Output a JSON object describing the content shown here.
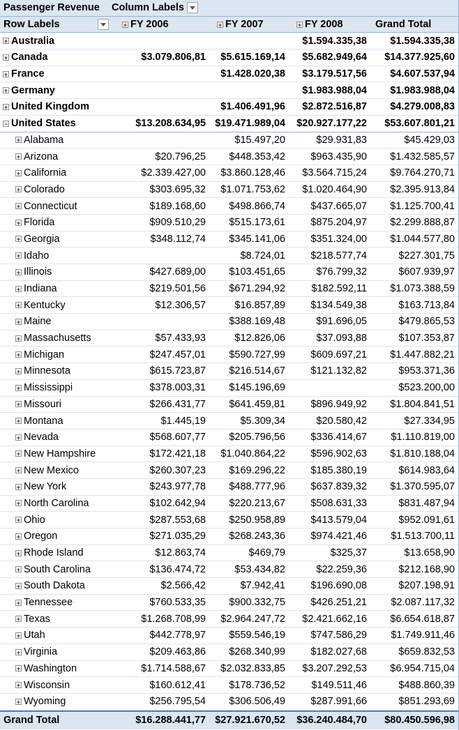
{
  "header": {
    "title": "Passenger Revenue",
    "column_labels": "Column Labels",
    "row_labels": "Row Labels",
    "columns": [
      "FY 2006",
      "FY 2007",
      "FY 2008",
      "Grand Total"
    ]
  },
  "groups": [
    {
      "label": "Australia",
      "values": [
        "",
        "",
        "$1.594.335,38",
        "$1.594.335,38"
      ],
      "expanded": false
    },
    {
      "label": "Canada",
      "values": [
        "$3.079.806,81",
        "$5.615.169,14",
        "$5.682.949,64",
        "$14.377.925,60"
      ],
      "expanded": false
    },
    {
      "label": "France",
      "values": [
        "",
        "$1.428.020,38",
        "$3.179.517,56",
        "$4.607.537,94"
      ],
      "expanded": false
    },
    {
      "label": "Germany",
      "values": [
        "",
        "",
        "$1.983.988,04",
        "$1.983.988,04"
      ],
      "expanded": false
    },
    {
      "label": "United Kingdom",
      "values": [
        "",
        "$1.406.491,96",
        "$2.872.516,87",
        "$4.279.008,83"
      ],
      "expanded": false
    },
    {
      "label": "United States",
      "values": [
        "$13.208.634,95",
        "$19.471.989,04",
        "$20.927.177,22",
        "$53.607.801,21"
      ],
      "expanded": true
    }
  ],
  "states": [
    {
      "label": "Alabama",
      "values": [
        "",
        "$15.497,20",
        "$29.931,83",
        "$45.429,03"
      ]
    },
    {
      "label": "Arizona",
      "values": [
        "$20.796,25",
        "$448.353,42",
        "$963.435,90",
        "$1.432.585,57"
      ]
    },
    {
      "label": "California",
      "values": [
        "$2.339.427,00",
        "$3.860.128,46",
        "$3.564.715,24",
        "$9.764.270,71"
      ]
    },
    {
      "label": "Colorado",
      "values": [
        "$303.695,32",
        "$1.071.753,62",
        "$1.020.464,90",
        "$2.395.913,84"
      ]
    },
    {
      "label": "Connecticut",
      "values": [
        "$189.168,60",
        "$498.866,74",
        "$437.665,07",
        "$1.125.700,41"
      ]
    },
    {
      "label": "Florida",
      "values": [
        "$909.510,29",
        "$515.173,61",
        "$875.204,97",
        "$2.299.888,87"
      ]
    },
    {
      "label": "Georgia",
      "values": [
        "$348.112,74",
        "$345.141,06",
        "$351.324,00",
        "$1.044.577,80"
      ]
    },
    {
      "label": "Idaho",
      "values": [
        "",
        "$8.724,01",
        "$218.577,74",
        "$227.301,75"
      ]
    },
    {
      "label": "Illinois",
      "values": [
        "$427.689,00",
        "$103.451,65",
        "$76.799,32",
        "$607.939,97"
      ]
    },
    {
      "label": "Indiana",
      "values": [
        "$219.501,56",
        "$671.294,92",
        "$182.592,11",
        "$1.073.388,59"
      ]
    },
    {
      "label": "Kentucky",
      "values": [
        "$12.306,57",
        "$16.857,89",
        "$134.549,38",
        "$163.713,84"
      ]
    },
    {
      "label": "Maine",
      "values": [
        "",
        "$388.169,48",
        "$91.696,05",
        "$479.865,53"
      ]
    },
    {
      "label": "Massachusetts",
      "values": [
        "$57.433,93",
        "$12.826,06",
        "$37.093,88",
        "$107.353,87"
      ]
    },
    {
      "label": "Michigan",
      "values": [
        "$247.457,01",
        "$590.727,99",
        "$609.697,21",
        "$1.447.882,21"
      ]
    },
    {
      "label": "Minnesota",
      "values": [
        "$615.723,87",
        "$216.514,67",
        "$121.132,82",
        "$953.371,36"
      ]
    },
    {
      "label": "Mississippi",
      "values": [
        "$378.003,31",
        "$145.196,69",
        "",
        "$523.200,00"
      ]
    },
    {
      "label": "Missouri",
      "values": [
        "$266.431,77",
        "$641.459,81",
        "$896.949,92",
        "$1.804.841,51"
      ]
    },
    {
      "label": "Montana",
      "values": [
        "$1.445,19",
        "$5.309,34",
        "$20.580,42",
        "$27.334,95"
      ]
    },
    {
      "label": "Nevada",
      "values": [
        "$568.607,77",
        "$205.796,56",
        "$336.414,67",
        "$1.110.819,00"
      ]
    },
    {
      "label": "New Hampshire",
      "values": [
        "$172.421,18",
        "$1.040.864,22",
        "$596.902,63",
        "$1.810.188,04"
      ]
    },
    {
      "label": "New Mexico",
      "values": [
        "$260.307,23",
        "$169.296,22",
        "$185.380,19",
        "$614.983,64"
      ]
    },
    {
      "label": "New York",
      "values": [
        "$243.977,78",
        "$488.777,96",
        "$637.839,32",
        "$1.370.595,07"
      ]
    },
    {
      "label": "North Carolina",
      "values": [
        "$102.642,94",
        "$220.213,67",
        "$508.631,33",
        "$831.487,94"
      ]
    },
    {
      "label": "Ohio",
      "values": [
        "$287.553,68",
        "$250.958,89",
        "$413.579,04",
        "$952.091,61"
      ]
    },
    {
      "label": "Oregon",
      "values": [
        "$271.035,29",
        "$268.243,36",
        "$974.421,46",
        "$1.513.700,11"
      ]
    },
    {
      "label": "Rhode Island",
      "values": [
        "$12.863,74",
        "$469,79",
        "$325,37",
        "$13.658,90"
      ]
    },
    {
      "label": "South Carolina",
      "values": [
        "$136.474,72",
        "$53.434,82",
        "$22.259,36",
        "$212.168,90"
      ]
    },
    {
      "label": "South Dakota",
      "values": [
        "$2.566,42",
        "$7.942,41",
        "$196.690,08",
        "$207.198,91"
      ]
    },
    {
      "label": "Tennessee",
      "values": [
        "$760.533,35",
        "$900.332,75",
        "$426.251,21",
        "$2.087.117,32"
      ]
    },
    {
      "label": "Texas",
      "values": [
        "$1.268.708,99",
        "$2.964.247,72",
        "$2.421.662,16",
        "$6.654.618,87"
      ]
    },
    {
      "label": "Utah",
      "values": [
        "$442.778,97",
        "$559.546,19",
        "$747.586,29",
        "$1.749.911,46"
      ]
    },
    {
      "label": "Virginia",
      "values": [
        "$209.463,86",
        "$268.340,99",
        "$182.027,68",
        "$659.832,53"
      ]
    },
    {
      "label": "Washington",
      "values": [
        "$1.714.588,67",
        "$2.032.833,85",
        "$3.207.292,53",
        "$6.954.715,04"
      ]
    },
    {
      "label": "Wisconsin",
      "values": [
        "$160.612,41",
        "$178.736,52",
        "$149.511,46",
        "$488.860,39"
      ]
    },
    {
      "label": "Wyoming",
      "values": [
        "$256.795,54",
        "$306.506,49",
        "$287.991,66",
        "$851.293,69"
      ]
    }
  ],
  "grand_total": {
    "label": "Grand Total",
    "values": [
      "$16.288.441,77",
      "$27.921.670,52",
      "$36.240.484,70",
      "$80.450.596,98"
    ]
  },
  "icons": {
    "expand": "plus-box-icon",
    "collapse": "minus-box-icon",
    "filter": "dropdown-arrow-icon"
  },
  "colors": {
    "header_bg": "#dce6f1",
    "border": "#95b3d7",
    "accent": "#4f81bd"
  }
}
